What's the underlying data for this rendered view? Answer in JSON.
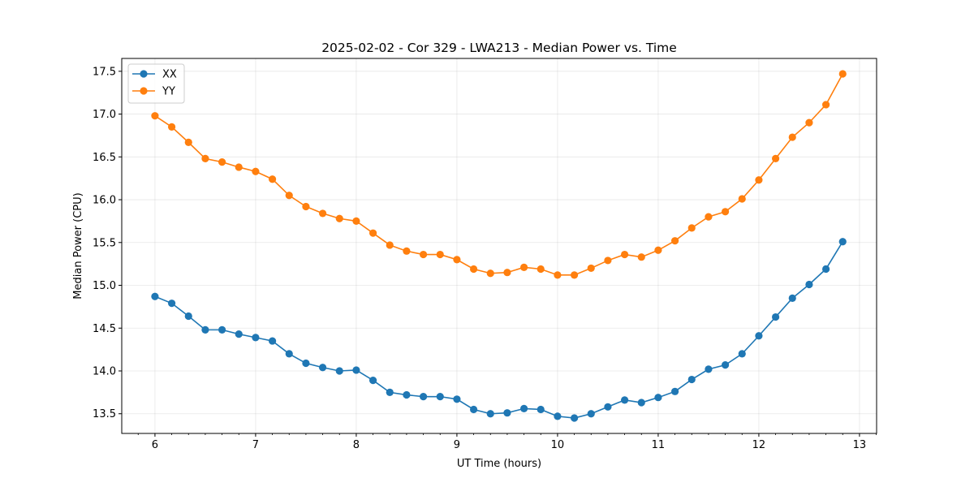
{
  "chart_data": {
    "type": "line",
    "title": "2025-02-02 - Cor 329 - LWA213 - Median Power vs. Time",
    "xlabel": "UT Time (hours)",
    "ylabel": "Median Power (CPU)",
    "xlim": [
      5.67,
      13.17
    ],
    "ylim": [
      13.27,
      17.65
    ],
    "xticks": [
      6,
      7,
      8,
      9,
      10,
      11,
      12,
      13
    ],
    "xtick_labels": [
      "6",
      "7",
      "8",
      "9",
      "10",
      "11",
      "12",
      "13"
    ],
    "yticks": [
      13.5,
      14.0,
      14.5,
      15.0,
      15.5,
      16.0,
      16.5,
      17.0,
      17.5
    ],
    "ytick_labels": [
      "13.5",
      "14.0",
      "14.5",
      "15.0",
      "15.5",
      "16.0",
      "16.5",
      "17.0",
      "17.5"
    ],
    "grid": true,
    "legend_position": "top-left",
    "x": [
      6.0,
      6.1667,
      6.3333,
      6.5,
      6.6667,
      6.8333,
      7.0,
      7.1667,
      7.3333,
      7.5,
      7.6667,
      7.8333,
      8.0,
      8.1667,
      8.3333,
      8.5,
      8.6667,
      8.8333,
      9.0,
      9.1667,
      9.3333,
      9.5,
      9.6667,
      9.8333,
      10.0,
      10.1667,
      10.3333,
      10.5,
      10.6667,
      10.8333,
      11.0,
      11.1667,
      11.3333,
      11.5,
      11.6667,
      11.8333,
      12.0,
      12.1667,
      12.3333,
      12.5,
      12.6667,
      12.8333
    ],
    "series": [
      {
        "name": "XX",
        "color": "#1f77b4",
        "values": [
          14.87,
          14.79,
          14.64,
          14.48,
          14.48,
          14.43,
          14.39,
          14.35,
          14.2,
          14.09,
          14.04,
          14.0,
          14.01,
          13.89,
          13.75,
          13.72,
          13.7,
          13.7,
          13.67,
          13.55,
          13.5,
          13.51,
          13.56,
          13.55,
          13.47,
          13.45,
          13.5,
          13.58,
          13.66,
          13.63,
          13.69,
          13.76,
          13.9,
          14.02,
          14.07,
          14.2,
          14.41,
          14.63,
          14.85,
          15.01,
          15.19,
          15.51
        ]
      },
      {
        "name": "YY",
        "color": "#ff7f0e",
        "values": [
          16.98,
          16.85,
          16.67,
          16.48,
          16.44,
          16.38,
          16.33,
          16.24,
          16.05,
          15.92,
          15.84,
          15.78,
          15.75,
          15.61,
          15.47,
          15.4,
          15.36,
          15.36,
          15.3,
          15.19,
          15.14,
          15.15,
          15.21,
          15.19,
          15.12,
          15.12,
          15.2,
          15.29,
          15.36,
          15.33,
          15.41,
          15.52,
          15.67,
          15.8,
          15.86,
          16.01,
          16.23,
          16.48,
          16.73,
          16.9,
          17.11,
          17.47
        ]
      }
    ]
  }
}
